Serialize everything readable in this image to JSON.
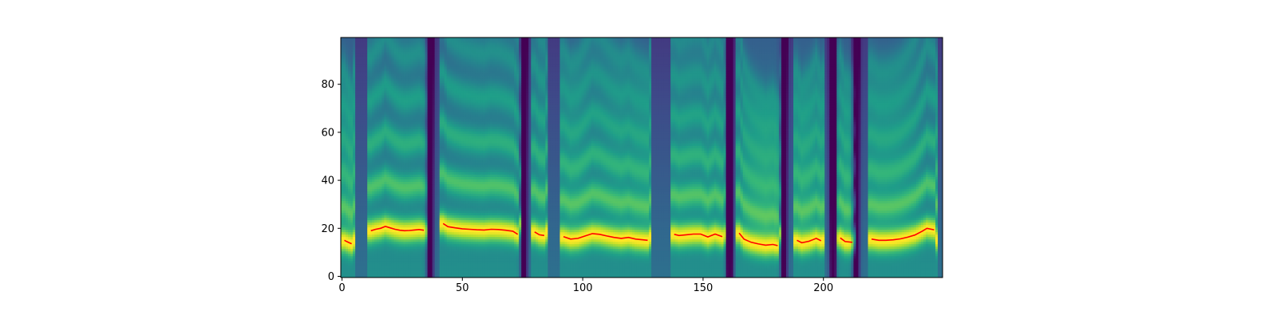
{
  "chart_data": {
    "type": "heatmap",
    "title": "",
    "xlabel": "",
    "ylabel": "",
    "colormap": "viridis",
    "xlim": [
      -0.5,
      249.5
    ],
    "ylim": [
      -0.5,
      99.5
    ],
    "x_ticks": [
      0,
      50,
      100,
      150,
      200
    ],
    "y_ticks": [
      0,
      20,
      40,
      60,
      80
    ],
    "line_color": "#ff0000",
    "segments": [
      {
        "x": [
          1,
          2,
          3,
          4
        ],
        "y": [
          15,
          14.5,
          14,
          13.6
        ]
      },
      {
        "x": [
          12,
          14,
          16,
          18,
          20,
          22,
          24,
          26,
          28,
          30,
          32,
          34
        ],
        "y": [
          19,
          19.6,
          20,
          20.8,
          20.2,
          19.6,
          19.2,
          19,
          19.1,
          19.3,
          19.5,
          19.2
        ]
      },
      {
        "x": [
          42,
          44,
          47,
          50,
          53,
          56,
          59,
          62,
          65,
          68,
          71,
          73
        ],
        "y": [
          22,
          20.7,
          20.2,
          19.8,
          19.6,
          19.4,
          19.3,
          19.6,
          19.5,
          19.2,
          18.8,
          17.5
        ]
      },
      {
        "x": [
          80,
          82,
          84
        ],
        "y": [
          18.5,
          17.3,
          17
        ]
      },
      {
        "x": [
          92,
          95,
          98,
          101,
          104,
          107,
          110,
          113,
          116,
          119,
          122,
          125,
          127
        ],
        "y": [
          16.5,
          15.5,
          15.8,
          16.8,
          17.8,
          17.5,
          16.8,
          16.2,
          15.8,
          16.2,
          15.5,
          15.2,
          15
        ]
      },
      {
        "x": [
          138,
          140,
          143,
          146,
          149,
          152,
          155,
          158
        ],
        "y": [
          17.5,
          17,
          17.3,
          17.6,
          17.6,
          16.4,
          17.6,
          16.5
        ]
      },
      {
        "x": [
          165,
          167,
          170,
          173,
          176,
          179,
          181
        ],
        "y": [
          18,
          15.5,
          14.2,
          13.5,
          13,
          13.3,
          12.8
        ]
      },
      {
        "x": [
          189,
          191,
          194,
          197,
          199
        ],
        "y": [
          15,
          14,
          14.6,
          15.8,
          14.8
        ]
      },
      {
        "x": [
          207,
          209,
          212
        ],
        "y": [
          16,
          14.5,
          14.2
        ]
      },
      {
        "x": [
          220,
          223,
          226,
          229,
          232,
          235,
          238,
          241,
          243,
          246
        ],
        "y": [
          15.5,
          15,
          15,
          15.2,
          15.6,
          16.3,
          17.2,
          18.8,
          20,
          19.4
        ]
      }
    ],
    "silences": [
      {
        "x": 36.5,
        "strength": 0.95
      },
      {
        "x": 75.5,
        "strength": 0.9
      },
      {
        "x": 161,
        "strength": 0.95
      },
      {
        "x": 183.5,
        "strength": 0.9
      },
      {
        "x": 204,
        "strength": 0.85
      },
      {
        "x": 213.5,
        "strength": 0.95
      }
    ]
  }
}
